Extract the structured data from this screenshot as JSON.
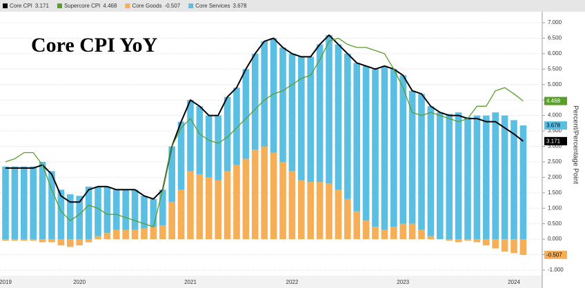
{
  "chart_data": {
    "type": "bar",
    "title": "Core CPI YoY",
    "y_label": "Percent/Percentage Point",
    "categories": [
      "2019",
      null,
      null,
      null,
      null,
      null,
      null,
      null,
      "2020",
      null,
      null,
      null,
      null,
      null,
      null,
      null,
      null,
      null,
      null,
      null,
      "2021",
      null,
      null,
      null,
      null,
      null,
      null,
      null,
      null,
      null,
      null,
      "2022",
      null,
      null,
      null,
      null,
      null,
      null,
      null,
      null,
      null,
      null,
      null,
      "2023",
      null,
      null,
      null,
      null,
      null,
      null,
      null,
      null,
      null,
      null,
      null,
      "2024",
      null
    ],
    "ylim": [
      -1,
      7
    ],
    "yticks": [
      {
        "value": -1,
        "label": "-1.000"
      },
      {
        "value": -0.5,
        "label": "-0.500"
      },
      {
        "value": 0,
        "label": "0.000"
      },
      {
        "value": 0.5,
        "label": "0.500"
      },
      {
        "value": 1,
        "label": "1.000"
      },
      {
        "value": 1.5,
        "label": "1.500"
      },
      {
        "value": 2,
        "label": "2.000"
      },
      {
        "value": 2.5,
        "label": "2.500"
      },
      {
        "value": 3,
        "label": "3.000"
      },
      {
        "value": 3.5,
        "label": "3.500"
      },
      {
        "value": 4,
        "label": "4.000"
      },
      {
        "value": 4.5,
        "label": "4.500"
      },
      {
        "value": 5,
        "label": "5.000"
      },
      {
        "value": 5.5,
        "label": "5.500"
      },
      {
        "value": 6,
        "label": "6.000"
      },
      {
        "value": 6.5,
        "label": "6.500"
      },
      {
        "value": 7,
        "label": "7.000"
      }
    ],
    "grid": true,
    "series": [
      {
        "name": "Core CPI",
        "kind": "line",
        "color": "#000000",
        "values": [
          2.3,
          2.3,
          2.3,
          2.3,
          2.4,
          2.1,
          1.4,
          1.2,
          1.2,
          1.6,
          1.7,
          1.7,
          1.6,
          1.6,
          1.6,
          1.4,
          1.3,
          1.6,
          3.0,
          3.8,
          4.5,
          4.3,
          4.0,
          4.0,
          4.6,
          4.9,
          5.5,
          6.0,
          6.4,
          6.5,
          6.2,
          6.0,
          5.9,
          5.9,
          6.3,
          6.6,
          6.3,
          6.0,
          5.7,
          5.6,
          5.5,
          5.6,
          5.5,
          5.3,
          4.8,
          4.7,
          4.3,
          4.1,
          4.0,
          4.0,
          3.9,
          3.9,
          3.8,
          3.8,
          3.6,
          3.4,
          3.171
        ]
      },
      {
        "name": "Supercore CPI",
        "kind": "line",
        "color": "#5a9e2a",
        "values": [
          2.5,
          2.6,
          2.8,
          2.8,
          2.4,
          1.6,
          0.9,
          0.6,
          0.8,
          1.1,
          1.0,
          0.8,
          0.8,
          0.7,
          0.6,
          0.5,
          0.4,
          1.6,
          3.0,
          3.6,
          3.9,
          3.4,
          3.2,
          3.1,
          3.3,
          3.6,
          3.9,
          4.2,
          4.5,
          4.7,
          4.8,
          5.0,
          5.2,
          5.3,
          5.8,
          6.4,
          6.5,
          6.3,
          6.2,
          6.2,
          6.1,
          6.0,
          5.5,
          4.9,
          4.1,
          4.0,
          4.1,
          4.0,
          3.9,
          3.8,
          3.9,
          4.3,
          4.3,
          4.8,
          4.9,
          4.7,
          4.468
        ]
      },
      {
        "name": "Core Goods",
        "kind": "bar",
        "color": "#f6ae57",
        "values": [
          -0.05,
          -0.05,
          -0.05,
          -0.05,
          -0.1,
          -0.1,
          -0.2,
          -0.25,
          -0.2,
          -0.1,
          0.1,
          0.2,
          0.3,
          0.3,
          0.3,
          0.35,
          0.4,
          0.45,
          1.2,
          1.6,
          2.2,
          2.1,
          2.0,
          1.9,
          2.2,
          2.4,
          2.6,
          2.9,
          3.0,
          2.8,
          2.5,
          2.2,
          1.9,
          1.85,
          1.85,
          1.8,
          1.6,
          1.3,
          0.9,
          0.6,
          0.4,
          0.3,
          0.4,
          0.5,
          0.5,
          0.3,
          0.1,
          0.0,
          -0.05,
          -0.1,
          -0.05,
          -0.1,
          -0.2,
          -0.3,
          -0.4,
          -0.45,
          -0.507
        ]
      },
      {
        "name": "Core Services",
        "kind": "bar",
        "color": "#5bbfe3",
        "values": [
          2.35,
          2.35,
          2.35,
          2.35,
          2.5,
          2.2,
          1.6,
          1.45,
          1.4,
          1.7,
          1.6,
          1.5,
          1.3,
          1.3,
          1.3,
          1.05,
          0.9,
          1.15,
          1.8,
          2.2,
          2.3,
          2.2,
          2.0,
          2.1,
          2.4,
          2.5,
          2.9,
          3.1,
          3.4,
          3.7,
          3.7,
          3.8,
          4.0,
          4.05,
          4.45,
          4.8,
          4.7,
          4.7,
          4.8,
          5.0,
          5.1,
          5.3,
          5.1,
          4.8,
          4.3,
          4.4,
          4.2,
          4.1,
          4.05,
          4.1,
          3.95,
          4.0,
          4.0,
          4.1,
          4.0,
          3.85,
          3.678
        ]
      }
    ]
  }
}
